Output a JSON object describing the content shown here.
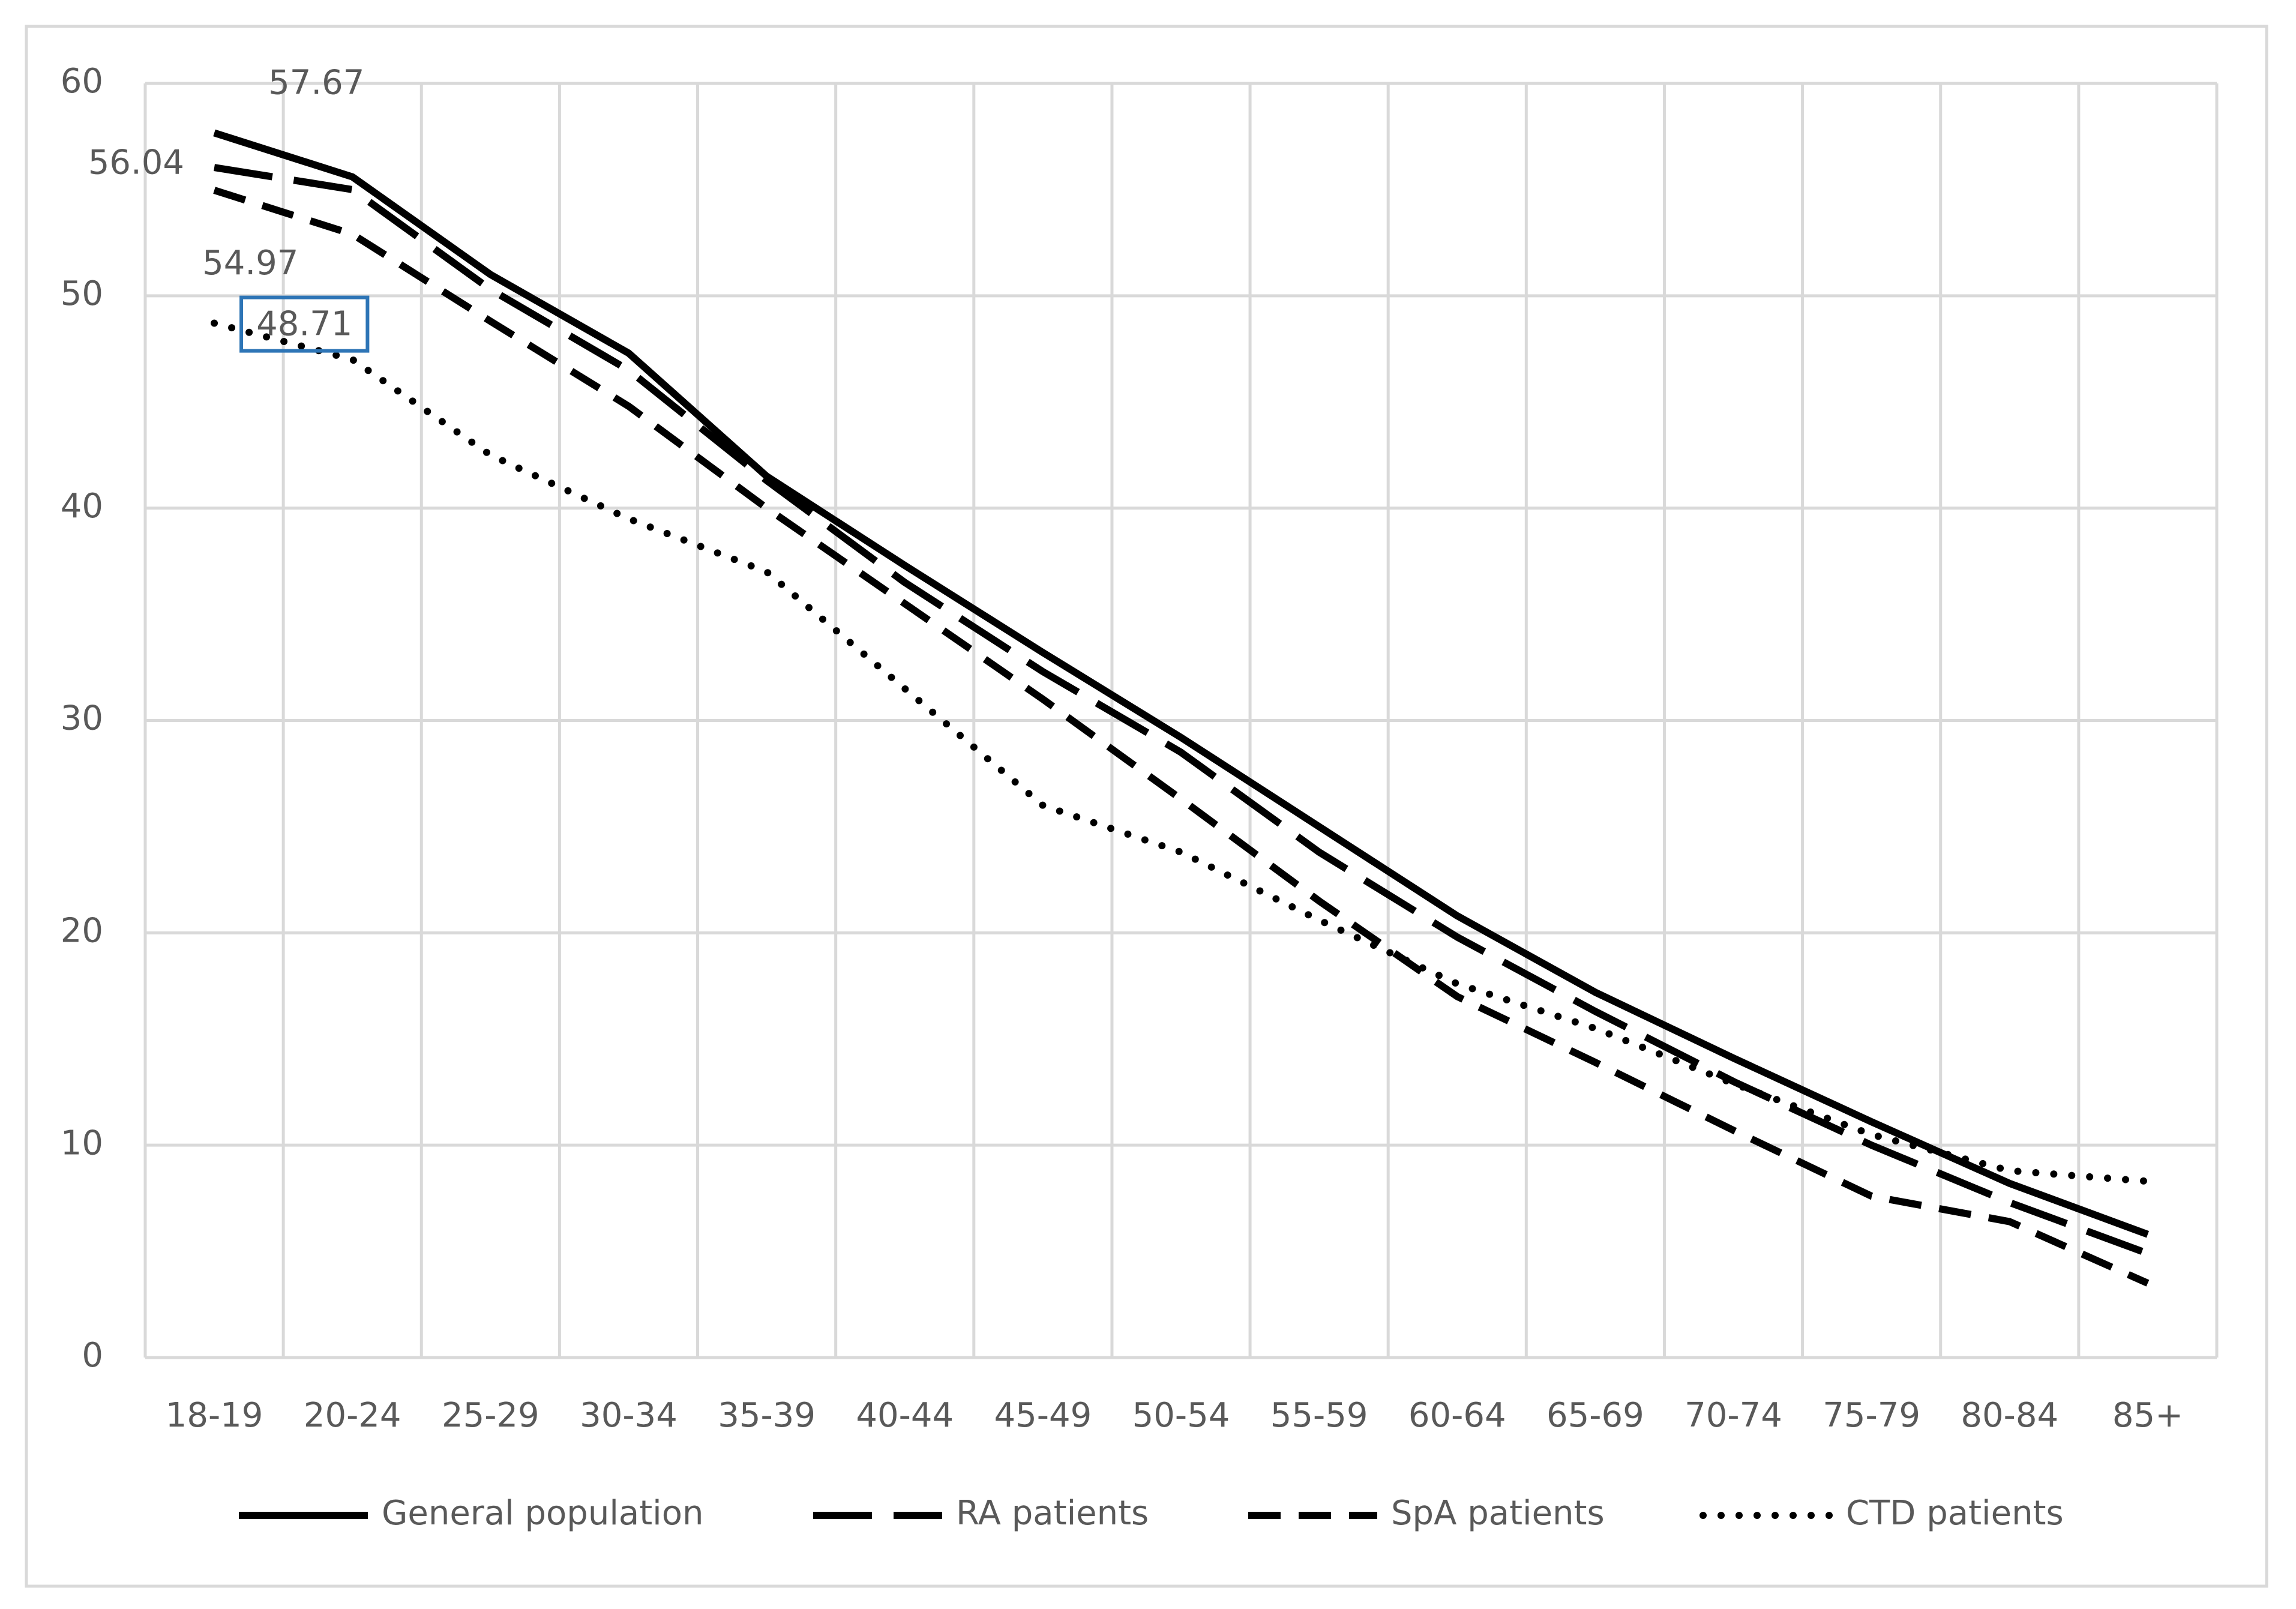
{
  "chart_data": {
    "type": "line",
    "categories": [
      "18-19",
      "20-24",
      "25-29",
      "30-34",
      "35-39",
      "40-44",
      "45-49",
      "50-54",
      "55-59",
      "60-64",
      "65-69",
      "70-74",
      "75-79",
      "80-84",
      "85+"
    ],
    "series": [
      {
        "name": "General population",
        "color": "#000000",
        "dash": "solid",
        "values": [
          57.67,
          55.6,
          51.0,
          47.3,
          41.5,
          37.3,
          33.2,
          29.2,
          25.0,
          20.8,
          17.2,
          14.1,
          11.1,
          8.2,
          5.8
        ]
      },
      {
        "name": "RA patients",
        "color": "#000000",
        "dash": "long-dash",
        "values": [
          56.04,
          55.0,
          50.3,
          46.5,
          41.3,
          36.5,
          32.3,
          28.5,
          23.8,
          19.8,
          16.3,
          13.0,
          10.0,
          7.3,
          4.9
        ]
      },
      {
        "name": "SpA patients",
        "color": "#000000",
        "dash": "dash",
        "values": [
          54.97,
          52.9,
          48.8,
          44.8,
          40.0,
          35.5,
          31.0,
          26.3,
          21.5,
          17.0,
          13.9,
          10.7,
          7.6,
          6.4,
          3.5
        ]
      },
      {
        "name": "CTD patients",
        "color": "#000000",
        "dash": "dot",
        "values": [
          48.71,
          47.0,
          42.5,
          39.5,
          37.0,
          31.5,
          26.0,
          23.8,
          20.6,
          17.6,
          15.5,
          12.9,
          10.5,
          8.8,
          8.3
        ]
      }
    ],
    "ylim": [
      0,
      60
    ],
    "yticks": [
      0,
      10,
      20,
      30,
      40,
      50,
      60
    ],
    "grid": true,
    "legend": "bottom"
  }
}
